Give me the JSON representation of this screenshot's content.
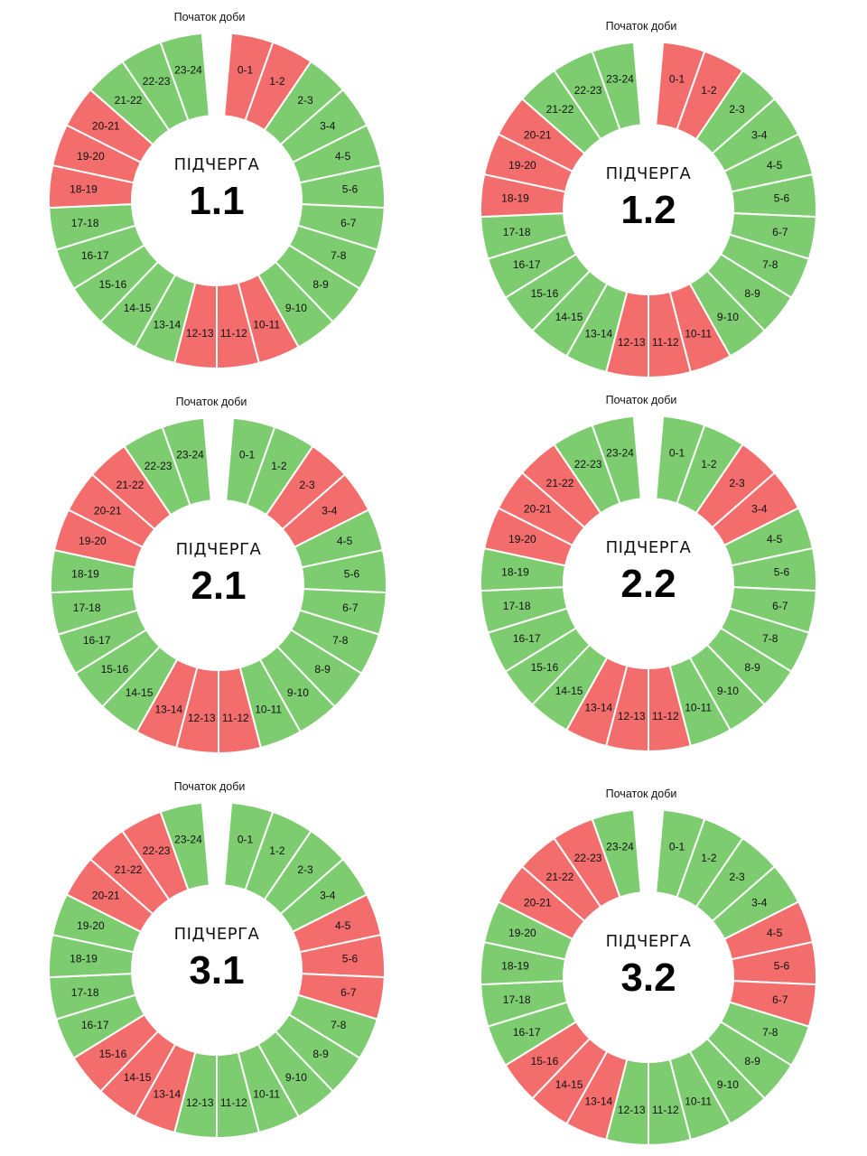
{
  "colors": {
    "off": "#f36d6d",
    "on": "#7dcd70",
    "stroke": "#ffffff"
  },
  "start_label": "Початок доби",
  "center_label": "ПІДЧЕРГА",
  "hour_labels": [
    "0-1",
    "1-2",
    "2-3",
    "3-4",
    "4-5",
    "5-6",
    "6-7",
    "7-8",
    "8-9",
    "9-10",
    "10-11",
    "11-12",
    "12-13",
    "13-14",
    "14-15",
    "15-16",
    "16-17",
    "17-18",
    "18-19",
    "19-20",
    "20-21",
    "21-22",
    "22-23",
    "23-24"
  ],
  "chart_data": [
    {
      "type": "pie",
      "subtitle": "ПІДЧЕРГА",
      "title": "1.1",
      "off_hours": [
        "0-1",
        "1-2",
        "10-11",
        "11-12",
        "12-13",
        "18-19",
        "19-20",
        "20-21"
      ],
      "values": [
        0,
        0,
        1,
        1,
        1,
        1,
        1,
        1,
        1,
        1,
        0,
        0,
        0,
        1,
        1,
        1,
        1,
        1,
        0,
        0,
        0,
        1,
        1,
        1
      ]
    },
    {
      "type": "pie",
      "subtitle": "ПІДЧЕРГА",
      "title": "1.2",
      "off_hours": [
        "0-1",
        "1-2",
        "10-11",
        "11-12",
        "12-13",
        "18-19",
        "19-20",
        "20-21"
      ],
      "values": [
        0,
        0,
        1,
        1,
        1,
        1,
        1,
        1,
        1,
        1,
        0,
        0,
        0,
        1,
        1,
        1,
        1,
        1,
        0,
        0,
        0,
        1,
        1,
        1
      ]
    },
    {
      "type": "pie",
      "subtitle": "ПІДЧЕРГА",
      "title": "2.1",
      "off_hours": [
        "2-3",
        "3-4",
        "11-12",
        "12-13",
        "13-14",
        "19-20",
        "20-21",
        "21-22"
      ],
      "values": [
        1,
        1,
        0,
        0,
        1,
        1,
        1,
        1,
        1,
        1,
        1,
        0,
        0,
        0,
        1,
        1,
        1,
        1,
        1,
        0,
        0,
        0,
        1,
        1
      ]
    },
    {
      "type": "pie",
      "subtitle": "ПІДЧЕРГА",
      "title": "2.2",
      "off_hours": [
        "2-3",
        "3-4",
        "11-12",
        "12-13",
        "13-14",
        "19-20",
        "20-21",
        "21-22"
      ],
      "values": [
        1,
        1,
        0,
        0,
        1,
        1,
        1,
        1,
        1,
        1,
        1,
        0,
        0,
        0,
        1,
        1,
        1,
        1,
        1,
        0,
        0,
        0,
        1,
        1
      ]
    },
    {
      "type": "pie",
      "subtitle": "ПІДЧЕРГА",
      "title": "3.1",
      "off_hours": [
        "4-5",
        "5-6",
        "6-7",
        "13-14",
        "14-15",
        "15-16",
        "20-21",
        "21-22",
        "22-23"
      ],
      "values": [
        1,
        1,
        1,
        1,
        0,
        0,
        0,
        1,
        1,
        1,
        1,
        1,
        1,
        0,
        0,
        0,
        1,
        1,
        1,
        1,
        0,
        0,
        0,
        1
      ]
    },
    {
      "type": "pie",
      "subtitle": "ПІДЧЕРГА",
      "title": "3.2",
      "off_hours": [
        "4-5",
        "5-6",
        "6-7",
        "13-14",
        "14-15",
        "15-16",
        "20-21",
        "21-22",
        "22-23"
      ],
      "values": [
        1,
        1,
        1,
        1,
        0,
        0,
        0,
        1,
        1,
        1,
        1,
        1,
        1,
        0,
        0,
        0,
        1,
        1,
        1,
        1,
        0,
        0,
        0,
        1
      ]
    }
  ]
}
